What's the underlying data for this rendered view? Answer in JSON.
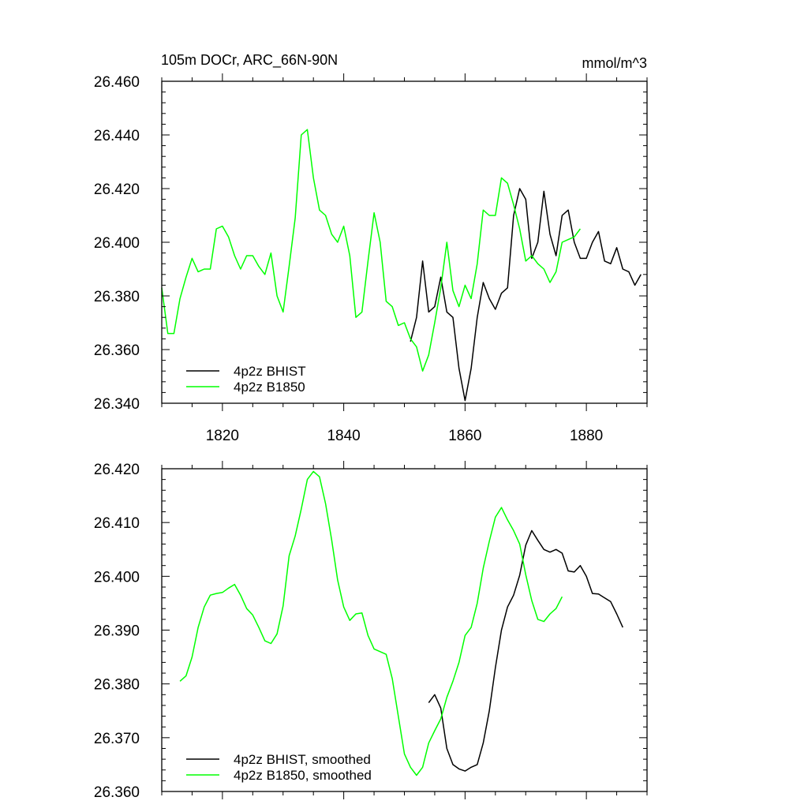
{
  "chart_data": [
    {
      "type": "line",
      "title": "105m DOCr, ARC_66N-90N",
      "units": "mmol/m^3",
      "xlim": [
        1810,
        1890
      ],
      "ylim": [
        26.34,
        26.46
      ],
      "xticks": [
        1820,
        1840,
        1860,
        1880
      ],
      "xtick_labels": [
        "1820",
        "1840",
        "1860",
        "1880"
      ],
      "yticks": [
        26.34,
        26.36,
        26.38,
        26.4,
        26.42,
        26.44,
        26.46
      ],
      "ytick_labels": [
        "26.340",
        "26.360",
        "26.380",
        "26.400",
        "26.420",
        "26.440",
        "26.460"
      ],
      "legend_position": "bottom-left",
      "series": [
        {
          "name": "4p2z BHIST",
          "color": "#000000",
          "x": [
            1851,
            1852,
            1853,
            1854,
            1855,
            1856,
            1857,
            1858,
            1859,
            1860,
            1861,
            1862,
            1863,
            1864,
            1865,
            1866,
            1867,
            1868,
            1869,
            1870,
            1871,
            1872,
            1873,
            1874,
            1875,
            1876,
            1877,
            1878,
            1879,
            1880,
            1881,
            1882,
            1883,
            1884,
            1885,
            1886,
            1887,
            1888,
            1889
          ],
          "y": [
            26.363,
            26.372,
            26.393,
            26.374,
            26.376,
            26.387,
            26.374,
            26.372,
            26.353,
            26.341,
            26.353,
            26.372,
            26.385,
            26.379,
            26.375,
            26.381,
            26.383,
            26.41,
            26.42,
            26.416,
            26.394,
            26.4,
            26.419,
            26.403,
            26.395,
            26.41,
            26.412,
            26.4,
            26.394,
            26.394,
            26.4,
            26.404,
            26.393,
            26.392,
            26.398,
            26.39,
            26.389,
            26.384,
            26.388
          ]
        },
        {
          "name": "4p2z B1850",
          "color": "#00ff00",
          "x": [
            1810,
            1811,
            1812,
            1813,
            1814,
            1815,
            1816,
            1817,
            1818,
            1819,
            1820,
            1821,
            1822,
            1823,
            1824,
            1825,
            1826,
            1827,
            1828,
            1829,
            1830,
            1831,
            1832,
            1833,
            1834,
            1835,
            1836,
            1837,
            1838,
            1839,
            1840,
            1841,
            1842,
            1843,
            1844,
            1845,
            1846,
            1847,
            1848,
            1849,
            1850,
            1851,
            1852,
            1853,
            1854,
            1855,
            1856,
            1857,
            1858,
            1859,
            1860,
            1861,
            1862,
            1863,
            1864,
            1865,
            1866,
            1867,
            1868,
            1869,
            1870,
            1871,
            1872,
            1873,
            1874,
            1875,
            1876,
            1877,
            1878,
            1879
          ],
          "y": [
            26.383,
            26.366,
            26.366,
            26.379,
            26.387,
            26.394,
            26.389,
            26.39,
            26.39,
            26.405,
            26.406,
            26.402,
            26.395,
            26.39,
            26.395,
            26.395,
            26.391,
            26.388,
            26.396,
            26.38,
            26.374,
            26.391,
            26.409,
            26.44,
            26.442,
            26.424,
            26.412,
            26.41,
            26.403,
            26.4,
            26.406,
            26.395,
            26.372,
            26.374,
            26.393,
            26.411,
            26.4,
            26.378,
            26.376,
            26.369,
            26.37,
            26.364,
            26.361,
            26.352,
            26.358,
            26.37,
            26.383,
            26.4,
            26.382,
            26.376,
            26.384,
            26.379,
            26.392,
            26.412,
            26.41,
            26.41,
            26.424,
            26.422,
            26.414,
            26.405,
            26.393,
            26.395,
            26.392,
            26.39,
            26.385,
            26.389,
            26.4,
            26.401,
            26.402,
            26.405
          ]
        }
      ]
    },
    {
      "type": "line",
      "xlim": [
        1810,
        1890
      ],
      "ylim": [
        26.36,
        26.42
      ],
      "xticks": [
        1820,
        1840,
        1860,
        1880
      ],
      "yticks": [
        26.36,
        26.37,
        26.38,
        26.39,
        26.4,
        26.41,
        26.42
      ],
      "ytick_labels": [
        "26.360",
        "26.370",
        "26.380",
        "26.390",
        "26.400",
        "26.410",
        "26.420"
      ],
      "legend_position": "bottom-left",
      "series": [
        {
          "name": "4p2z BHIST, smoothed",
          "color": "#000000",
          "x": [
            1854,
            1855,
            1856,
            1857,
            1858,
            1859,
            1860,
            1861,
            1862,
            1863,
            1864,
            1865,
            1866,
            1867,
            1868,
            1869,
            1870,
            1871,
            1872,
            1873,
            1874,
            1875,
            1876,
            1877,
            1878,
            1879,
            1880,
            1881,
            1882,
            1883,
            1884,
            1885,
            1886
          ],
          "y": [
            26.3765,
            26.378,
            26.3755,
            26.368,
            26.365,
            26.3642,
            26.3638,
            26.3645,
            26.365,
            26.369,
            26.375,
            26.383,
            26.39,
            26.3943,
            26.3965,
            26.4002,
            26.4058,
            26.4085,
            26.4067,
            26.405,
            26.4045,
            26.405,
            26.4043,
            26.401,
            26.4008,
            26.402,
            26.4,
            26.3968,
            26.3967,
            26.396,
            26.3953,
            26.393,
            26.3905
          ]
        },
        {
          "name": "4p2z B1850, smoothed",
          "color": "#00ff00",
          "x": [
            1813,
            1814,
            1815,
            1816,
            1817,
            1818,
            1819,
            1820,
            1821,
            1822,
            1823,
            1824,
            1825,
            1826,
            1827,
            1828,
            1829,
            1830,
            1831,
            1832,
            1833,
            1834,
            1835,
            1836,
            1837,
            1838,
            1839,
            1840,
            1841,
            1842,
            1843,
            1844,
            1845,
            1846,
            1847,
            1848,
            1849,
            1850,
            1851,
            1852,
            1853,
            1854,
            1855,
            1856,
            1857,
            1858,
            1859,
            1860,
            1861,
            1862,
            1863,
            1864,
            1865,
            1866,
            1867,
            1868,
            1869,
            1870,
            1871,
            1872,
            1873,
            1874,
            1875,
            1876
          ],
          "y": [
            26.3805,
            26.3815,
            26.385,
            26.3905,
            26.3943,
            26.3965,
            26.3968,
            26.397,
            26.3978,
            26.3985,
            26.3965,
            26.394,
            26.3928,
            26.3905,
            26.388,
            26.3875,
            26.3893,
            26.3945,
            26.4038,
            26.4075,
            26.4125,
            26.418,
            26.4195,
            26.4185,
            26.4135,
            26.4068,
            26.3993,
            26.3943,
            26.3918,
            26.393,
            26.3932,
            26.389,
            26.3865,
            26.386,
            26.3855,
            26.381,
            26.374,
            26.367,
            26.3645,
            26.363,
            26.3645,
            26.369,
            26.3713,
            26.3735,
            26.3775,
            26.3805,
            26.384,
            26.389,
            26.3905,
            26.395,
            26.4015,
            26.4065,
            26.411,
            26.4128,
            26.4105,
            26.4085,
            26.406,
            26.4003,
            26.3955,
            26.392,
            26.3916,
            26.393,
            26.394,
            26.3962
          ]
        }
      ]
    }
  ]
}
